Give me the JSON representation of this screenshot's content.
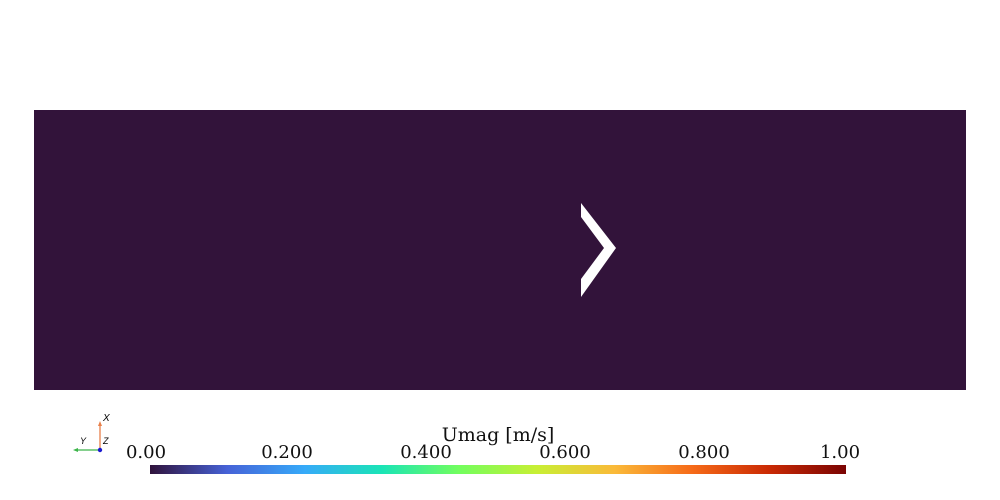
{
  "colorbar": {
    "title": "Umag [m/s]",
    "ticks": [
      "0.00",
      "0.200",
      "0.400",
      "0.600",
      "0.800",
      "1.00"
    ],
    "tick_values": [
      0.0,
      0.2,
      0.4,
      0.6,
      0.8,
      1.0
    ],
    "range": [
      0.0,
      1.0
    ],
    "colormap": "turbo",
    "stops": [
      "#30123b",
      "#4662d7",
      "#36aaf9",
      "#1ae4b6",
      "#72fe5e",
      "#c8ef34",
      "#faba39",
      "#f66b19",
      "#ca2a04",
      "#7a0403"
    ]
  },
  "field": {
    "color": "#32133a",
    "obstacle_color": "#ffffff"
  },
  "orientation_axes": {
    "x_label": "X",
    "y_label": "Y",
    "z_label": "Z",
    "x_color": "#e8804a",
    "y_color": "#3cb54a",
    "z_color": "#1a1ad0"
  }
}
